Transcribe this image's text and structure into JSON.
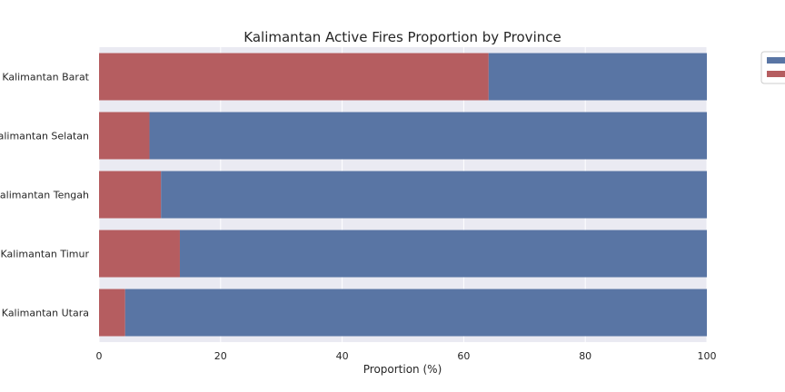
{
  "chart_data": {
    "type": "bar",
    "orientation": "horizontal",
    "stacked": true,
    "title": "Kalimantan Active Fires Proportion by Province",
    "xlabel": "Proportion (%)",
    "ylabel": "",
    "xlim": [
      0,
      100
    ],
    "xticks": [
      0,
      20,
      40,
      60,
      80,
      100
    ],
    "grid": true,
    "legend_position": "outside top-right (entries cut off)",
    "categories": [
      "Kalimantan Barat",
      "Kalimantan Selatan",
      "Kalimantan Tengah",
      "Kalimantan Timur",
      "Kalimantan Utara"
    ],
    "series": [
      {
        "color": "#b55d60",
        "values": [
          64.1,
          8.3,
          10.2,
          13.3,
          4.3
        ]
      },
      {
        "color": "#5975a4",
        "values": [
          35.9,
          91.7,
          89.8,
          86.7,
          95.7
        ]
      }
    ],
    "colors": {
      "plot_background": "#eaeaf2",
      "grid": "#ffffff",
      "text": "#262626"
    }
  }
}
